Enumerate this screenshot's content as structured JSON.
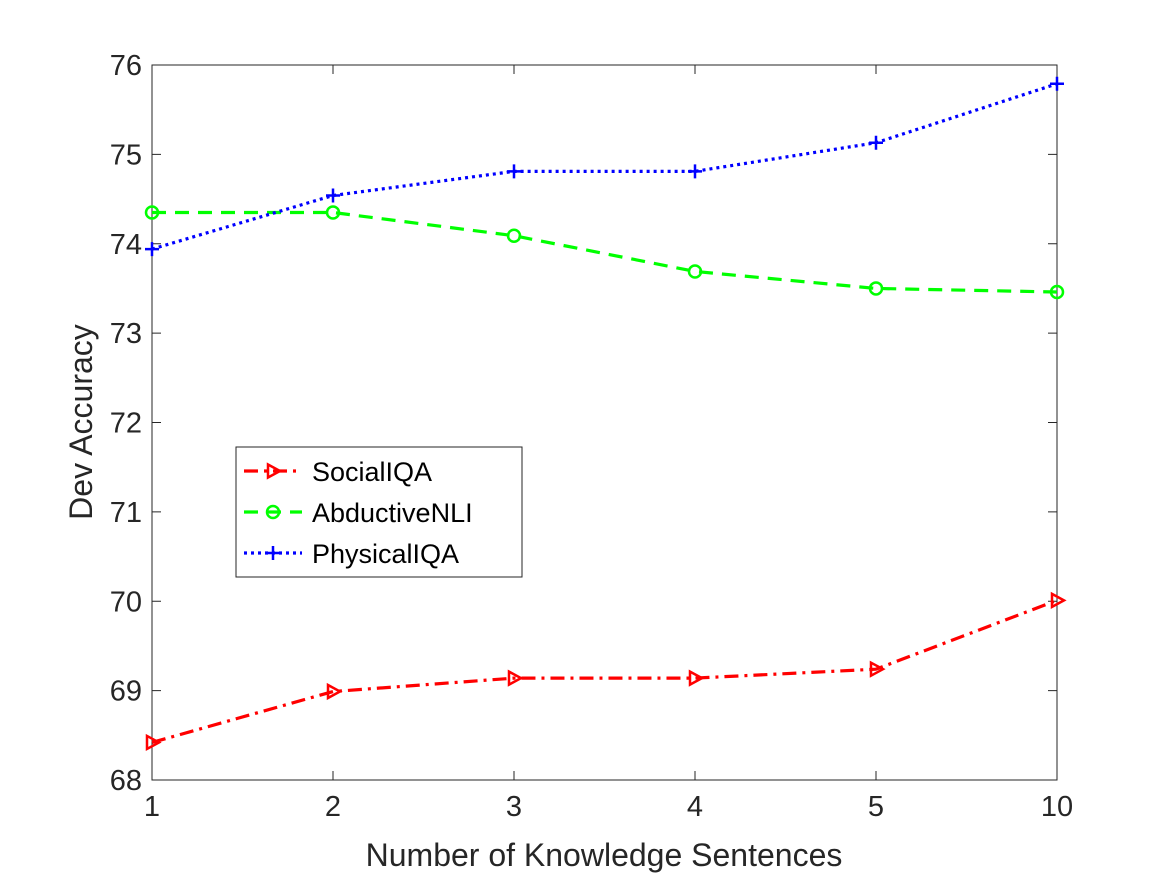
{
  "chart_data": {
    "type": "line",
    "xlabel": "Number of Knowledge Sentences",
    "ylabel": "Dev Accuracy",
    "categories": [
      "1",
      "2",
      "3",
      "4",
      "5",
      "10"
    ],
    "ylim": [
      68,
      76
    ],
    "yticks": [
      68,
      69,
      70,
      71,
      72,
      73,
      74,
      75,
      76
    ],
    "grid": false,
    "legend_position": "center-left",
    "series": [
      {
        "name": "SocialIQA",
        "values": [
          68.42,
          68.99,
          69.14,
          69.14,
          69.24,
          70.01
        ],
        "color": "#ff0000",
        "line_style": "dash-dot",
        "marker": "triangle-right"
      },
      {
        "name": "AbductiveNLI",
        "values": [
          74.35,
          74.35,
          74.09,
          73.69,
          73.5,
          73.46
        ],
        "color": "#00ff00",
        "line_style": "dashed",
        "marker": "circle"
      },
      {
        "name": "PhysicalIQA",
        "values": [
          73.94,
          74.54,
          74.81,
          74.81,
          75.13,
          75.79
        ],
        "color": "#0000ff",
        "line_style": "dotted",
        "marker": "plus"
      }
    ]
  }
}
